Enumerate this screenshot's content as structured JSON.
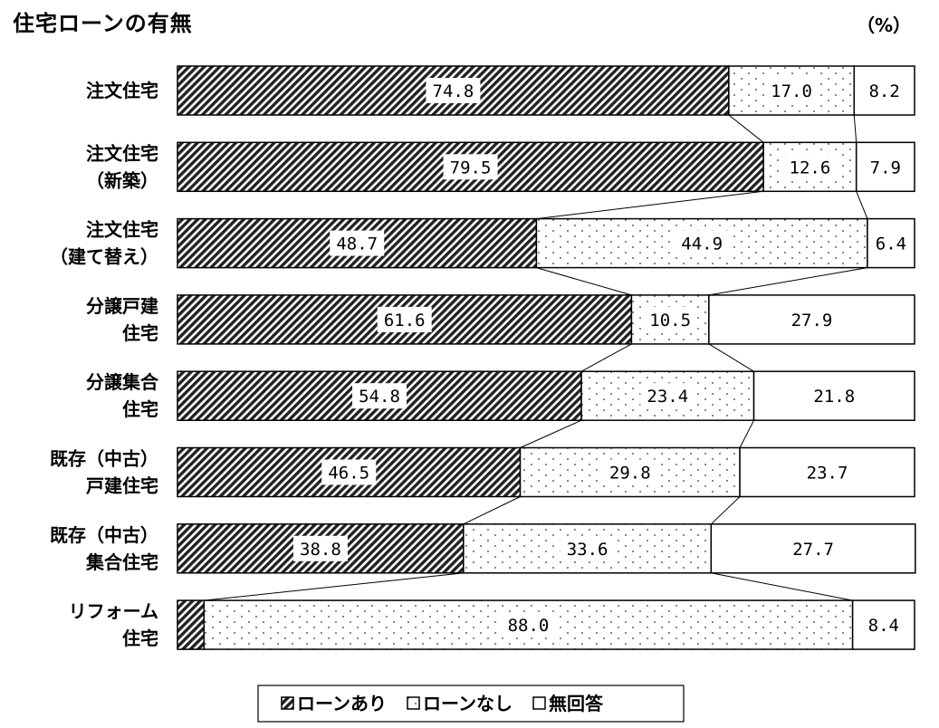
{
  "title": "住宅ローンの有無",
  "unit": "（%）",
  "chart_data": {
    "type": "bar",
    "stacked": true,
    "orientation": "horizontal",
    "categories": [
      [
        "注文住宅"
      ],
      [
        "注文住宅",
        "（新築）"
      ],
      [
        "注文住宅",
        "（建て替え）"
      ],
      [
        "分譲戸建",
        "住宅"
      ],
      [
        "分譲集合",
        "住宅"
      ],
      [
        "既存（中古）",
        "戸建住宅"
      ],
      [
        "既存（中古）",
        "集合住宅"
      ],
      [
        "リフォーム",
        "住宅"
      ]
    ],
    "series": [
      {
        "name": "ローンあり",
        "pattern": "diagonal-hatch",
        "values": [
          74.8,
          79.5,
          48.7,
          61.6,
          54.8,
          46.5,
          38.8,
          3.6
        ]
      },
      {
        "name": "ローンなし",
        "pattern": "dots",
        "values": [
          17.0,
          12.6,
          44.9,
          10.5,
          23.4,
          29.8,
          33.6,
          88.0
        ]
      },
      {
        "name": "無回答",
        "pattern": "blank",
        "values": [
          8.2,
          7.9,
          6.4,
          27.9,
          21.8,
          23.7,
          27.7,
          8.4
        ]
      }
    ],
    "value_labels": [
      [
        "74.8",
        "17.0",
        "8.2"
      ],
      [
        "79.5",
        "12.6",
        "7.9"
      ],
      [
        "48.7",
        "44.9",
        "6.4"
      ],
      [
        "61.6",
        "10.5",
        "27.9"
      ],
      [
        "54.8",
        "23.4",
        "21.8"
      ],
      [
        "46.5",
        "29.8",
        "23.7"
      ],
      [
        "38.8",
        "33.6",
        "27.7"
      ],
      [
        "",
        "88.0",
        "8.4"
      ]
    ],
    "xlim": [
      0,
      100
    ],
    "gridlines": [
      10,
      20,
      30,
      40,
      50,
      60,
      70,
      80,
      90
    ],
    "series_connector_lines": true,
    "legend_position": "bottom-center",
    "colors": {
      "stroke": "#000000",
      "fill": "#ffffff"
    }
  }
}
